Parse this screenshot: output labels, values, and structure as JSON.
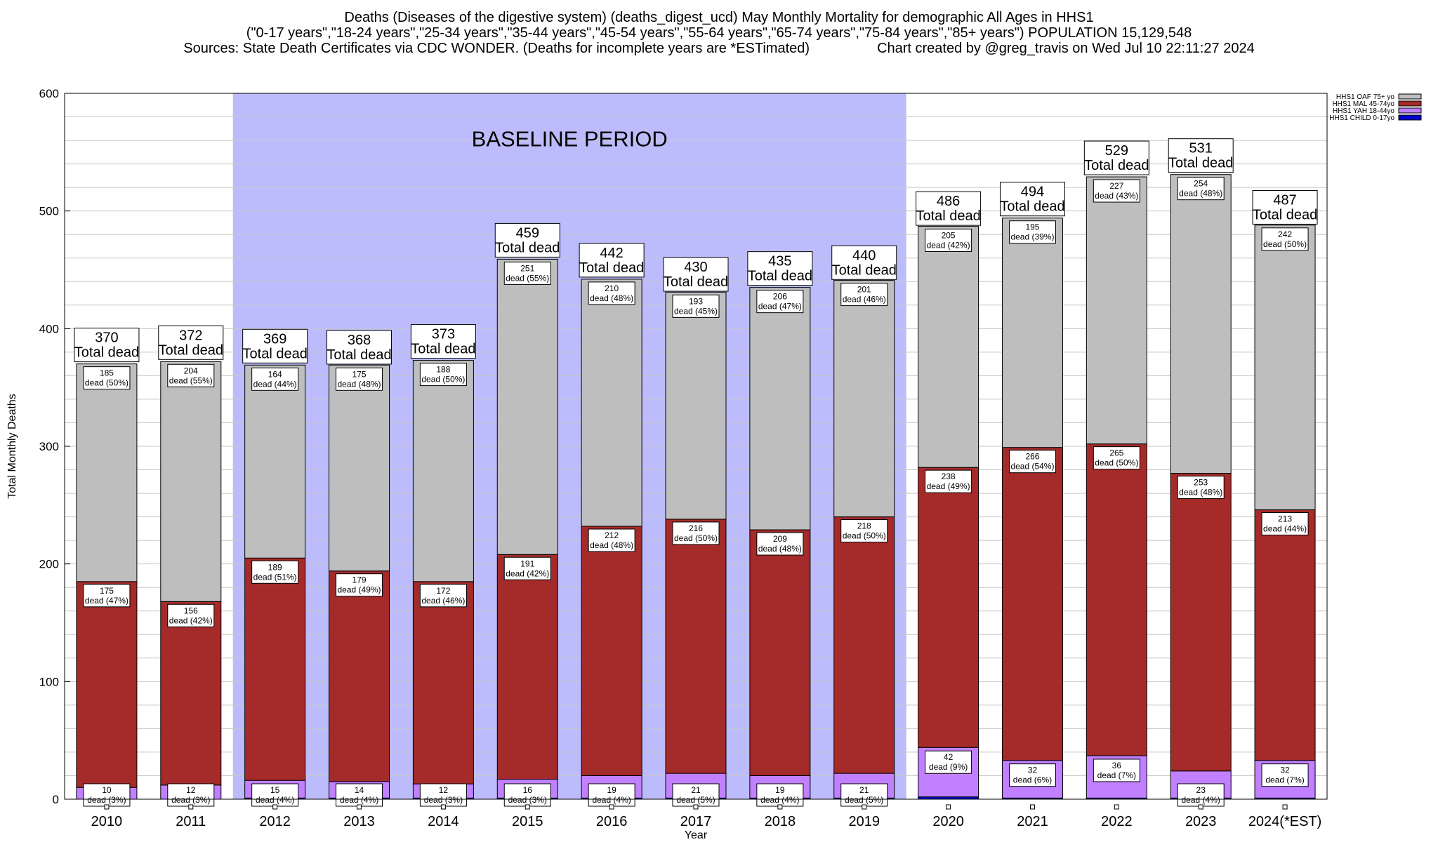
{
  "titles": {
    "line1": "Deaths (Diseases of the digestive system) (deaths_digest_ucd) May Monthly Mortality for demographic All Ages in HHS1",
    "line2": "(\"0-17 years\",\"18-24 years\",\"25-34 years\",\"35-44 years\",\"45-54 years\",\"55-64 years\",\"65-74 years\",\"75-84 years\",\"85+ years\") POPULATION 15,129,548",
    "line3_left": "Sources: State Death Certificates via CDC WONDER. (Deaths for incomplete years are *ESTimated)",
    "line3_right": "Chart created by @greg_travis on Wed Jul 10 22:11:27 2024"
  },
  "colors": {
    "oaf": "#bebebe",
    "mal": "#a52a2a",
    "yah": "#c080ff",
    "child": "#0000cd",
    "baseline": "#bcbcfc",
    "grid": "#c8c8c8"
  },
  "chart_data": {
    "type": "bar",
    "stacked": true,
    "xlabel": "Year",
    "ylabel": "Total Monthly Deaths",
    "ylim": [
      0,
      600
    ],
    "yticks": [
      "0",
      "100",
      "200",
      "300",
      "400",
      "500",
      "600"
    ],
    "grid": true,
    "legend_position": "top-right",
    "baseline_label": "BASELINE PERIOD",
    "baseline_range": [
      "2012",
      "2019"
    ],
    "categories": [
      "2010",
      "2011",
      "2012",
      "2013",
      "2014",
      "2015",
      "2016",
      "2017",
      "2018",
      "2019",
      "2020",
      "2021",
      "2022",
      "2023",
      "2024(*EST)"
    ],
    "totals": [
      370,
      372,
      369,
      368,
      373,
      459,
      442,
      430,
      435,
      440,
      486,
      494,
      529,
      531,
      487
    ],
    "total_label_suffix": "Total dead",
    "segment_label_word": "dead",
    "series": [
      {
        "name": "HHS1 CHILD 0-17yo",
        "key": "child",
        "values": [
          0,
          0,
          1,
          1,
          1,
          1,
          1,
          1,
          1,
          1,
          2,
          1,
          1,
          1,
          1
        ],
        "labels": []
      },
      {
        "name": "HHS1 YAH 18-44yo",
        "key": "yah",
        "values": [
          10,
          12,
          15,
          14,
          12,
          16,
          19,
          21,
          19,
          21,
          42,
          32,
          36,
          23,
          32
        ],
        "pct": [
          "3%",
          "3%",
          "4%",
          "4%",
          "3%",
          "3%",
          "4%",
          "5%",
          "4%",
          "5%",
          "9%",
          "6%",
          "7%",
          "4%",
          "7%"
        ]
      },
      {
        "name": "HHS1 MAL 45-74yo",
        "key": "mal",
        "values": [
          175,
          156,
          189,
          179,
          172,
          191,
          212,
          216,
          209,
          218,
          238,
          266,
          265,
          253,
          213
        ],
        "pct": [
          "47%",
          "42%",
          "51%",
          "49%",
          "46%",
          "42%",
          "48%",
          "50%",
          "48%",
          "50%",
          "49%",
          "54%",
          "50%",
          "48%",
          "44%"
        ]
      },
      {
        "name": "HHS1 OAF 75+ yo",
        "key": "oaf",
        "values": [
          185,
          204,
          164,
          175,
          188,
          251,
          210,
          193,
          206,
          201,
          205,
          195,
          227,
          254,
          242
        ],
        "pct": [
          "50%",
          "55%",
          "44%",
          "48%",
          "50%",
          "55%",
          "48%",
          "45%",
          "47%",
          "46%",
          "42%",
          "39%",
          "43%",
          "48%",
          "50%"
        ]
      }
    ],
    "legend_order": [
      "oaf",
      "mal",
      "yah",
      "child"
    ]
  }
}
